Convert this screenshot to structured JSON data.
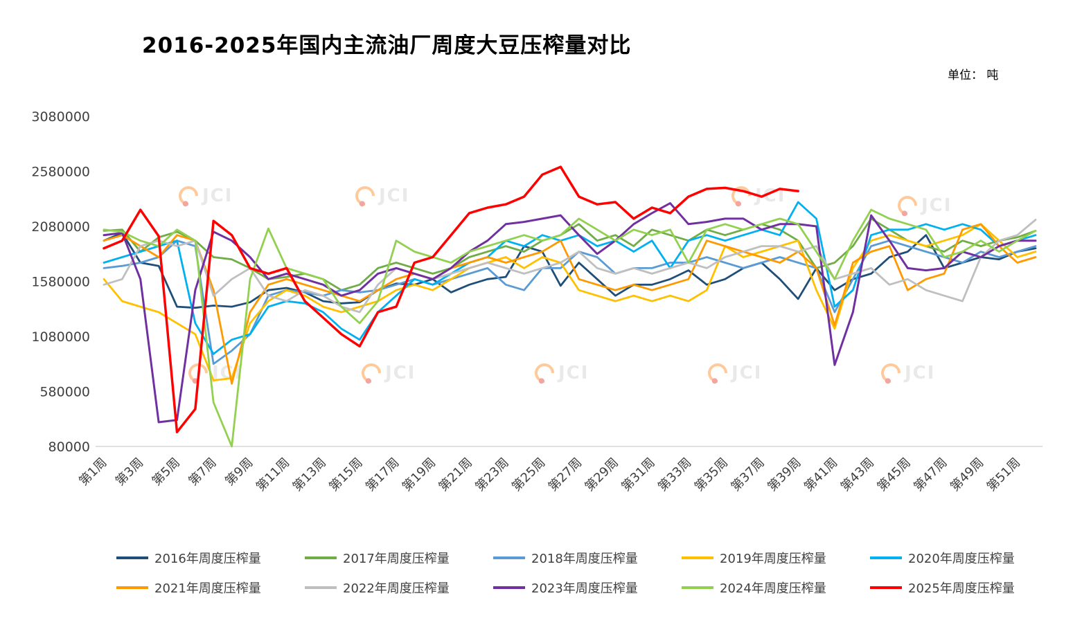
{
  "page": {
    "title": "2016-2025年国内主流油厂周度大豆压榨量对比",
    "unit_label": "单位： 吨"
  },
  "watermark": {
    "text": "JCI"
  },
  "chart_data": {
    "type": "line",
    "title": "2016-2025年国内主流油厂周度大豆压榨量对比",
    "ylabel": "吨",
    "weeks": 52,
    "grid": false,
    "legend_position": "bottom",
    "y_min": 80000,
    "y_max": 3080000,
    "y_ticks": [
      80000,
      580000,
      1080000,
      1580000,
      2080000,
      2580000,
      3080000
    ],
    "y_tick_labels": [
      "80000",
      "580000",
      "1080000",
      "1580000",
      "2080000",
      "2580000",
      "3080000"
    ],
    "x_tick_labels": [
      "第1周",
      "第3周",
      "第5周",
      "第7周",
      "第9周",
      "第11周",
      "第13周",
      "第15周",
      "第17周",
      "第19周",
      "第21周",
      "第23周",
      "第25周",
      "第27周",
      "第29周",
      "第31周",
      "第33周",
      "第35周",
      "第37周",
      "第39周",
      "第41周",
      "第43周",
      "第45周",
      "第47周",
      "第49周",
      "第51周"
    ],
    "series": [
      {
        "id": "y2016",
        "name": "2016年周度压榨量",
        "color": "#1F4E79",
        "width": 2.8,
        "values": [
          1950000,
          2020000,
          1750000,
          1720000,
          1350000,
          1340000,
          1360000,
          1350000,
          1390000,
          1500000,
          1520000,
          1480000,
          1400000,
          1380000,
          1390000,
          1500000,
          1560000,
          1550000,
          1600000,
          1480000,
          1550000,
          1600000,
          1620000,
          1900000,
          1850000,
          1540000,
          1750000,
          1600000,
          1450000,
          1550000,
          1550000,
          1600000,
          1680000,
          1550000,
          1600000,
          1700000,
          1750000,
          1600000,
          1420000,
          1700000,
          1500000,
          1600000,
          1650000,
          1800000,
          1850000,
          2000000,
          1700000,
          1750000,
          1800000,
          1780000,
          1850000,
          1880000
        ]
      },
      {
        "id": "y2017",
        "name": "2017年周度压榨量",
        "color": "#70AD47",
        "width": 2.8,
        "values": [
          2040000,
          2050000,
          1850000,
          1980000,
          2030000,
          1950000,
          1800000,
          1780000,
          1700000,
          1600000,
          1620000,
          1650000,
          1600000,
          1500000,
          1550000,
          1700000,
          1750000,
          1700000,
          1650000,
          1700000,
          1800000,
          1850000,
          1900000,
          1850000,
          1950000,
          2000000,
          2100000,
          1950000,
          2000000,
          1900000,
          2050000,
          2000000,
          1950000,
          2050000,
          2000000,
          2050000,
          2100000,
          2050000,
          1950000,
          1700000,
          1750000,
          1900000,
          2150000,
          2050000,
          1950000,
          1900000,
          1850000,
          1950000,
          1900000,
          1950000,
          1980000,
          2040000
        ]
      },
      {
        "id": "y2018",
        "name": "2018年周度压榨量",
        "color": "#5B9BD5",
        "width": 2.8,
        "values": [
          1700000,
          1720000,
          1750000,
          1800000,
          1950000,
          1900000,
          830000,
          950000,
          1100000,
          1450000,
          1500000,
          1480000,
          1450000,
          1500000,
          1480000,
          1500000,
          1550000,
          1600000,
          1550000,
          1600000,
          1650000,
          1700000,
          1550000,
          1500000,
          1700000,
          1700000,
          1850000,
          1800000,
          1650000,
          1700000,
          1700000,
          1750000,
          1750000,
          1800000,
          1750000,
          1700000,
          1750000,
          1800000,
          1750000,
          1700000,
          1300000,
          1600000,
          1900000,
          1950000,
          1900000,
          1850000,
          1800000,
          1750000,
          1850000,
          1800000,
          1850000,
          1900000
        ]
      },
      {
        "id": "y2019",
        "name": "2019年周度压榨量",
        "color": "#FFC000",
        "width": 2.8,
        "values": [
          1600000,
          1400000,
          1350000,
          1300000,
          1200000,
          1100000,
          680000,
          700000,
          1200000,
          1400000,
          1500000,
          1450000,
          1350000,
          1300000,
          1350000,
          1400000,
          1500000,
          1550000,
          1500000,
          1600000,
          1700000,
          1750000,
          1800000,
          1700000,
          1800000,
          1750000,
          1500000,
          1450000,
          1400000,
          1450000,
          1400000,
          1450000,
          1400000,
          1500000,
          1900000,
          1800000,
          1850000,
          1900000,
          1950000,
          1500000,
          1150000,
          1700000,
          1950000,
          2000000,
          1950000,
          1900000,
          1950000,
          2000000,
          2100000,
          1950000,
          1800000,
          1850000
        ]
      },
      {
        "id": "y2020",
        "name": "2020年周度压榨量",
        "color": "#00B0F0",
        "width": 2.8,
        "values": [
          1750000,
          1800000,
          1850000,
          1900000,
          1950000,
          1200000,
          920000,
          1050000,
          1100000,
          1350000,
          1400000,
          1380000,
          1300000,
          1150000,
          1050000,
          1300000,
          1450000,
          1600000,
          1550000,
          1650000,
          1750000,
          1800000,
          1950000,
          1900000,
          2000000,
          1950000,
          2000000,
          1900000,
          1950000,
          1850000,
          1950000,
          1700000,
          1950000,
          2000000,
          1950000,
          2000000,
          2050000,
          2000000,
          2300000,
          2150000,
          1350000,
          1500000,
          2000000,
          2050000,
          2050000,
          2100000,
          2050000,
          2100000,
          2050000,
          1900000,
          1950000,
          2000000
        ]
      },
      {
        "id": "y2021",
        "name": "2021年周度压榨量",
        "color": "#FF9900",
        "width": 2.8,
        "values": [
          1950000,
          2000000,
          1900000,
          1800000,
          2000000,
          1950000,
          1500000,
          650000,
          1300000,
          1550000,
          1600000,
          1550000,
          1500000,
          1450000,
          1400000,
          1500000,
          1600000,
          1650000,
          1600000,
          1700000,
          1750000,
          1800000,
          1750000,
          1800000,
          1850000,
          1950000,
          1600000,
          1550000,
          1500000,
          1550000,
          1500000,
          1550000,
          1600000,
          1950000,
          1900000,
          1850000,
          1800000,
          1750000,
          1850000,
          1700000,
          1180000,
          1750000,
          1850000,
          1900000,
          1500000,
          1600000,
          1650000,
          2050000,
          2100000,
          1900000,
          1750000,
          1800000
        ]
      },
      {
        "id": "y2022",
        "name": "2022年周度压榨量",
        "color": "#BFBFBF",
        "width": 2.8,
        "values": [
          1550000,
          1600000,
          1900000,
          1950000,
          1900000,
          1950000,
          1450000,
          1600000,
          1700000,
          1450000,
          1400000,
          1500000,
          1450000,
          1350000,
          1300000,
          1550000,
          1700000,
          1650000,
          1600000,
          1650000,
          1700000,
          1750000,
          1700000,
          1650000,
          1700000,
          1750000,
          1850000,
          1700000,
          1650000,
          1700000,
          1650000,
          1700000,
          1750000,
          1700000,
          1800000,
          1850000,
          1900000,
          1900000,
          1850000,
          1900000,
          1600000,
          1650000,
          1700000,
          1550000,
          1600000,
          1500000,
          1450000,
          1400000,
          1800000,
          1950000,
          2000000,
          2140000
        ]
      },
      {
        "id": "y2023",
        "name": "2023年周度压榨量",
        "color": "#7030A0",
        "width": 3.0,
        "values": [
          2000000,
          2020000,
          1600000,
          300000,
          320000,
          1500000,
          2030000,
          1950000,
          1800000,
          1600000,
          1650000,
          1600000,
          1550000,
          1450000,
          1500000,
          1650000,
          1700000,
          1650000,
          1600000,
          1700000,
          1850000,
          1950000,
          2100000,
          2120000,
          2150000,
          2180000,
          2000000,
          1830000,
          1950000,
          2100000,
          2200000,
          2290000,
          2100000,
          2120000,
          2150000,
          2150000,
          2050000,
          2100000,
          2100000,
          2080000,
          820000,
          1300000,
          2180000,
          1950000,
          1700000,
          1680000,
          1700000,
          1850000,
          1800000,
          1900000,
          1950000,
          1950000
        ]
      },
      {
        "id": "y2024",
        "name": "2024年周度压榨量",
        "color": "#92D050",
        "width": 2.8,
        "values": [
          2050000,
          2030000,
          1950000,
          1900000,
          2050000,
          1950000,
          480000,
          80000,
          1600000,
          2060000,
          1700000,
          1650000,
          1600000,
          1350000,
          1200000,
          1400000,
          1950000,
          1850000,
          1800000,
          1750000,
          1850000,
          1900000,
          1950000,
          2000000,
          1950000,
          2000000,
          2150000,
          2050000,
          1950000,
          2050000,
          2000000,
          2050000,
          1750000,
          2050000,
          2100000,
          2050000,
          2100000,
          2150000,
          2100000,
          1850000,
          1600000,
          1950000,
          2230000,
          2150000,
          2100000,
          2050000,
          1800000,
          1850000,
          1950000,
          1850000,
          1950000,
          2040000
        ]
      },
      {
        "id": "y2025",
        "name": "2025年周度压榨量",
        "color": "#FF0000",
        "width": 3.5,
        "values": [
          1880000,
          1950000,
          2230000,
          1990000,
          210000,
          420000,
          2130000,
          2000000,
          1700000,
          1650000,
          1700000,
          1400000,
          1250000,
          1100000,
          990000,
          1300000,
          1350000,
          1750000,
          1800000,
          2000000,
          2200000,
          2250000,
          2280000,
          2350000,
          2550000,
          2620000,
          2350000,
          2280000,
          2300000,
          2150000,
          2250000,
          2200000,
          2350000,
          2420000,
          2430000,
          2400000,
          2350000,
          2420000,
          2400000
        ]
      }
    ]
  }
}
